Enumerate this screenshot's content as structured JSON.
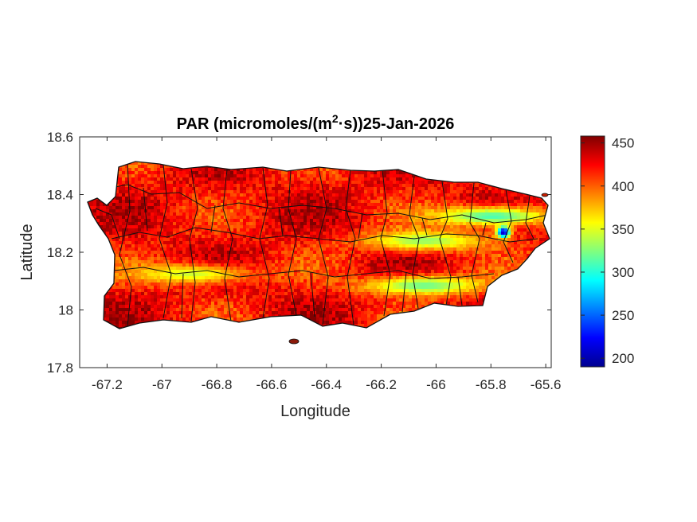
{
  "chart_data": {
    "type": "heatmap",
    "title": {
      "prefix": "PAR (micromoles/(m",
      "superscript": "2",
      "suffix": "·s))25-Jan-2026"
    },
    "xlabel": "Longitude",
    "ylabel": "Latitude",
    "xlim": [
      -67.3,
      -65.58
    ],
    "ylim": [
      17.8,
      18.6
    ],
    "xticks": [
      -67.2,
      -67,
      -66.8,
      -66.6,
      -66.4,
      -66.2,
      -66,
      -65.8,
      -65.6
    ],
    "xtick_labels": [
      "-67.2",
      "-67",
      "-66.8",
      "-66.6",
      "-66.4",
      "-66.2",
      "-66",
      "-65.8",
      "-65.6"
    ],
    "yticks": [
      17.8,
      18,
      18.2,
      18.4,
      18.6
    ],
    "ytick_labels": [
      "17.8",
      "18",
      "18.2",
      "18.4",
      "18.6"
    ],
    "grid": false,
    "colormap": "jet",
    "colorbar": {
      "clim": [
        190,
        458
      ],
      "ticks": [
        200,
        250,
        300,
        350,
        400,
        450
      ],
      "tick_labels": [
        "200",
        "250",
        "300",
        "350",
        "400",
        "450"
      ]
    },
    "field_low_bands": [
      {
        "lon": -66.05,
        "lat": 18.245,
        "value": 330
      },
      {
        "lon": -66.9,
        "lat": 18.13,
        "value": 345
      },
      {
        "lon": -66.05,
        "lat": 18.09,
        "value": 320
      },
      {
        "lon": -65.8,
        "lat": 18.33,
        "value": 310
      },
      {
        "lon": -65.76,
        "lat": 18.275,
        "value": 205
      }
    ]
  }
}
